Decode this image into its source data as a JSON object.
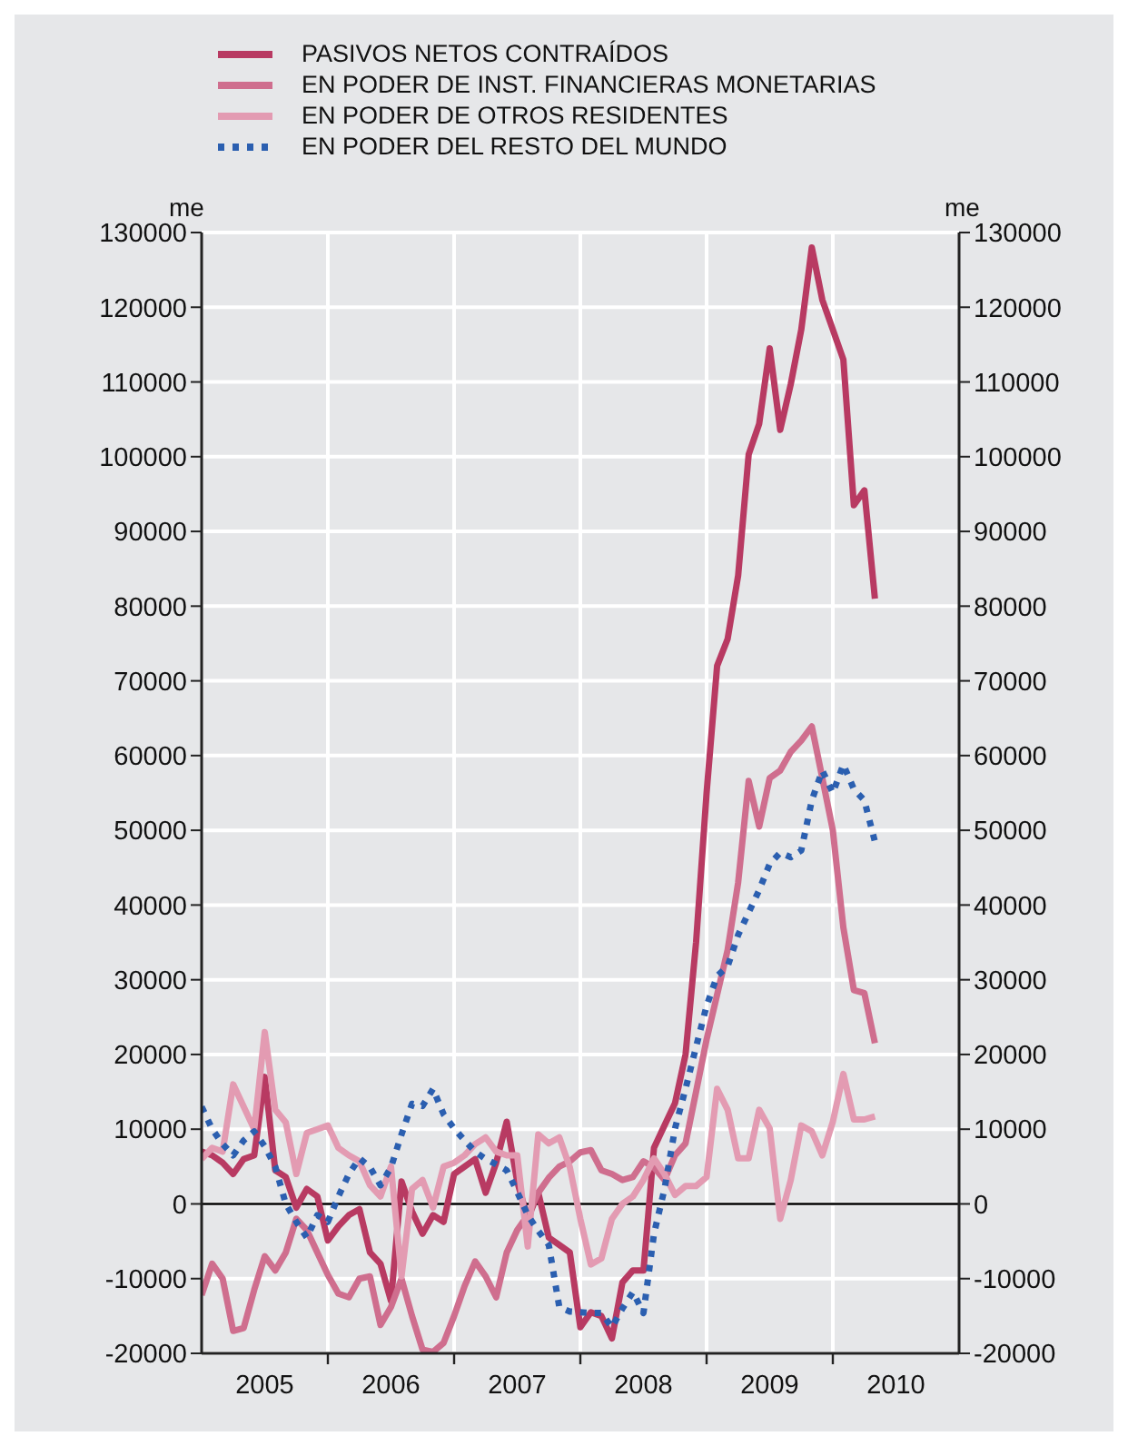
{
  "chart_data": {
    "type": "line",
    "ylabel": "me",
    "y2label": "me",
    "legend": "top",
    "grid": true,
    "marker": "none",
    "x": [
      "2005-01",
      "2005-02",
      "2005-03",
      "2005-04",
      "2005-05",
      "2005-06",
      "2005-07",
      "2005-08",
      "2005-09",
      "2005-10",
      "2005-11",
      "2005-12",
      "2006-01",
      "2006-02",
      "2006-03",
      "2006-04",
      "2006-05",
      "2006-06",
      "2006-07",
      "2006-08",
      "2006-09",
      "2006-10",
      "2006-11",
      "2006-12",
      "2007-01",
      "2007-02",
      "2007-03",
      "2007-04",
      "2007-05",
      "2007-06",
      "2007-07",
      "2007-08",
      "2007-09",
      "2007-10",
      "2007-11",
      "2007-12",
      "2008-01",
      "2008-02",
      "2008-03",
      "2008-04",
      "2008-05",
      "2008-06",
      "2008-07",
      "2008-08",
      "2008-09",
      "2008-10",
      "2008-11",
      "2008-12",
      "2009-01",
      "2009-02",
      "2009-03",
      "2009-04",
      "2009-05",
      "2009-06",
      "2009-07",
      "2009-08",
      "2009-09",
      "2009-10",
      "2009-11",
      "2009-12",
      "2010-01",
      "2010-02",
      "2010-03",
      "2010-04",
      "2010-05"
    ],
    "series": [
      {
        "name": "PASIVOS NETOS CONTRAÍDOS",
        "color": "#b83a62",
        "line_style": "solid",
        "values": [
          7000,
          6500,
          5500,
          4000,
          6000,
          6500,
          17000,
          4500,
          3600,
          -500,
          2000,
          1000,
          -4900,
          -3000,
          -1500,
          -700,
          -6500,
          -8000,
          -13000,
          3000,
          -1000,
          -4000,
          -1500,
          -2400,
          4000,
          5000,
          6000,
          1500,
          5500,
          11000,
          3000,
          -2000,
          1500,
          -4500,
          -5500,
          -6500,
          -16500,
          -14500,
          -15000,
          -18000,
          -10500,
          -8900,
          -8900,
          7500,
          10500,
          13500,
          20000,
          35000,
          55000,
          72000,
          75600,
          84100,
          100300,
          104400,
          114500,
          103600,
          109700,
          117000,
          128000,
          121000,
          117000,
          113000,
          93500,
          95500,
          81000
        ]
      },
      {
        "name": "EN PODER DE INST. FINANCIERAS MONETARIAS",
        "color": "#cf6e8e",
        "line_style": "solid",
        "values": [
          -12200,
          -8000,
          -10000,
          -17000,
          -16600,
          -11500,
          -7000,
          -8900,
          -6500,
          -2000,
          -3500,
          -6500,
          -9500,
          -12000,
          -12500,
          -10000,
          -9700,
          -16200,
          -13800,
          -10000,
          -15000,
          -19500,
          -19800,
          -18600,
          -15000,
          -11000,
          -7700,
          -9700,
          -12500,
          -6500,
          -3500,
          -1500,
          1500,
          3500,
          5000,
          5700,
          6900,
          7200,
          4500,
          4000,
          3200,
          3600,
          5700,
          4900,
          3200,
          6500,
          8100,
          15000,
          22000,
          28000,
          34000,
          43000,
          56600,
          50500,
          57000,
          58000,
          60500,
          62000,
          63900,
          57000,
          50000,
          37000,
          28600,
          28200,
          21500
        ]
      },
      {
        "name": "EN PODER DE OTROS RESIDENTES",
        "color": "#e39bb2",
        "line_style": "solid",
        "values": [
          6000,
          7500,
          7000,
          16000,
          13000,
          10000,
          23000,
          12600,
          10900,
          4000,
          9500,
          10000,
          10500,
          7500,
          6500,
          5700,
          2500,
          1000,
          5000,
          -9700,
          2000,
          3200,
          -500,
          5000,
          5500,
          6500,
          8000,
          8900,
          7000,
          6500,
          6500,
          -5700,
          9300,
          8100,
          8900,
          4900,
          -2000,
          -8100,
          -7300,
          -2000,
          0,
          1000,
          3200,
          6100,
          4000,
          1200,
          2400,
          2400,
          3600,
          15400,
          12600,
          6100,
          6100,
          12600,
          10100,
          -2000,
          3200,
          10500,
          9700,
          6500,
          11000,
          17400,
          11300,
          11300,
          11700
        ]
      },
      {
        "name": "EN PODER DEL RESTO DEL MUNDO",
        "color": "#2b5fb0",
        "line_style": "dotted",
        "values": [
          13000,
          10000,
          8000,
          6500,
          8500,
          9700,
          7700,
          5000,
          0,
          -2400,
          -4500,
          -1500,
          -2400,
          1000,
          4000,
          6100,
          4900,
          2500,
          4900,
          9300,
          13400,
          13100,
          15400,
          12000,
          10100,
          8500,
          7000,
          6000,
          5300,
          4500,
          1600,
          -1500,
          -3600,
          -5500,
          -13800,
          -14400,
          -14500,
          -14600,
          -14600,
          -16500,
          -14000,
          -11800,
          -14600,
          -4000,
          2000,
          10100,
          15400,
          21000,
          26500,
          30500,
          31800,
          36000,
          39000,
          42000,
          45500,
          47000,
          46400,
          47300,
          54000,
          58000,
          55000,
          58800,
          55500,
          54000,
          48500
        ]
      }
    ],
    "xlim": [
      "2005-01",
      "2011-01"
    ],
    "xticks": [
      {
        "value": "2005-07",
        "label": "2005"
      },
      {
        "value": "2006-01",
        "label": null
      },
      {
        "value": "2006-07",
        "label": "2006"
      },
      {
        "value": "2007-01",
        "label": null
      },
      {
        "value": "2007-07",
        "label": "2007"
      },
      {
        "value": "2008-01",
        "label": null
      },
      {
        "value": "2008-07",
        "label": "2008"
      },
      {
        "value": "2009-01",
        "label": null
      },
      {
        "value": "2009-07",
        "label": "2009"
      },
      {
        "value": "2010-01",
        "label": null
      },
      {
        "value": "2010-07",
        "label": "2010"
      }
    ],
    "ylim": [
      -20000,
      130000
    ],
    "yticks": [
      -20000,
      -10000,
      0,
      10000,
      20000,
      30000,
      40000,
      50000,
      60000,
      70000,
      80000,
      90000,
      100000,
      110000,
      120000,
      130000
    ],
    "y2lim": [
      -20000,
      130000
    ],
    "y2ticks": [
      -20000,
      -10000,
      0,
      10000,
      20000,
      30000,
      40000,
      50000,
      60000,
      70000,
      80000,
      90000,
      100000,
      110000,
      120000,
      130000
    ],
    "ref_lines": [
      {
        "axis": "y",
        "value": 0,
        "color": "#000000"
      }
    ]
  }
}
